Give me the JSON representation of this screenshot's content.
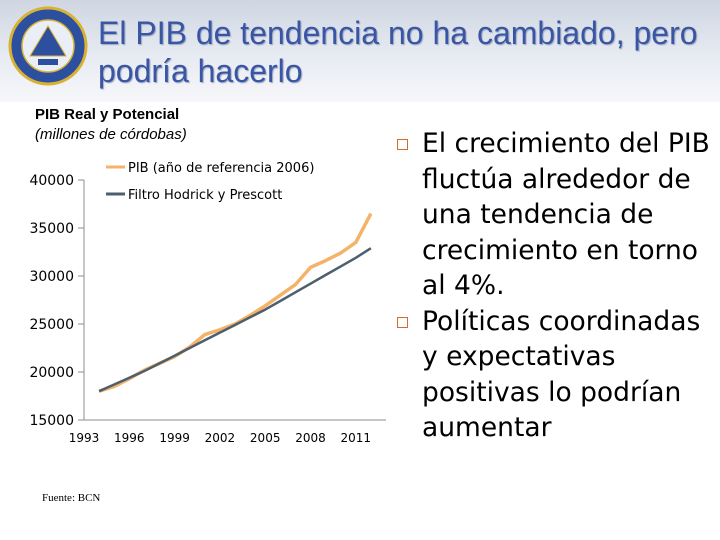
{
  "title": "El PIB de tendencia no ha cambiado, pero podría hacerlo",
  "logo": {
    "icon": "bcn-seal-icon",
    "color": "#2d4fa0",
    "ring_color": "#d9b233"
  },
  "source": "Fuente: BCN",
  "bullets": [
    "El crecimiento del PIB fluctúa alrededor de una tendencia de crecimiento en torno al 4%.",
    "Políticas coordinadas y expectativas positivas lo podrían aumentar"
  ],
  "colors": {
    "title": "#3a55a3",
    "actual": "#f5b36a",
    "trend": "#4d5f6e",
    "bullet": "#d46a2b"
  },
  "chart_data": {
    "type": "line",
    "title": "PIB Real y Potencial",
    "subtitle": "(millones de córdobas)",
    "ylim": [
      15000,
      40000
    ],
    "yticks": [
      40000,
      35000,
      30000,
      25000,
      20000,
      15000
    ],
    "xlim": [
      1993,
      2013
    ],
    "xticks": [
      1993,
      1996,
      1999,
      2002,
      2005,
      2008,
      2011
    ],
    "legend_position": "top",
    "grid": false,
    "x": [
      1994,
      1995,
      1996,
      1997,
      1998,
      1999,
      2000,
      2001,
      2002,
      2003,
      2004,
      2005,
      2006,
      2007,
      2008,
      2009,
      2010,
      2011,
      2012
    ],
    "series": [
      {
        "name": "PIB (año de referencia 2006)",
        "color": "#f5b36a",
        "values": [
          18000,
          18500,
          19300,
          20200,
          20900,
          21600,
          22600,
          23900,
          24400,
          25000,
          25900,
          26900,
          28000,
          29100,
          30900,
          31600,
          32400,
          33500,
          36500
        ]
      },
      {
        "name": "Filtro Hodrick y Prescott",
        "color": "#4d5f6e",
        "values": [
          18000,
          18700,
          19400,
          20100,
          20900,
          21700,
          22500,
          23300,
          24100,
          24900,
          25700,
          26500,
          27400,
          28300,
          29200,
          30100,
          31000,
          31900,
          32900
        ]
      }
    ]
  }
}
